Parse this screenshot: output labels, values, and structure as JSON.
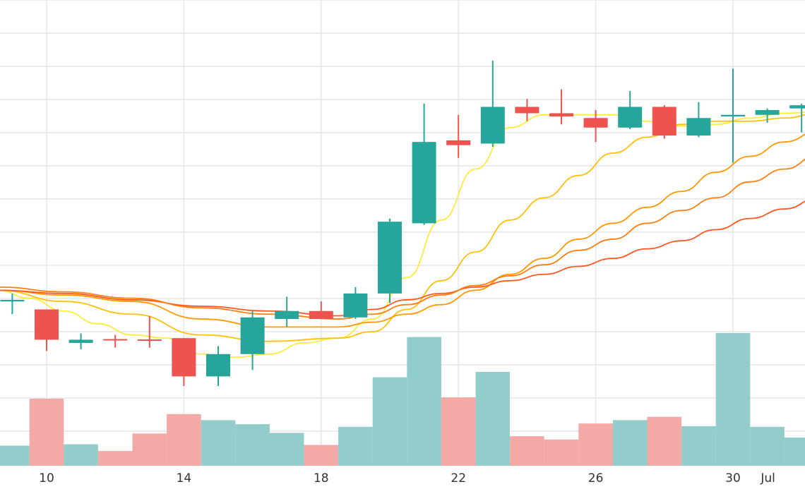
{
  "chart_data": {
    "type": "candlestick",
    "title": "",
    "xlabel": "",
    "ylabel": "",
    "grid": true,
    "legend": "none",
    "colors": {
      "up": "#26a69a",
      "down": "#ef5350",
      "volume_up": "#92cdcc",
      "volume_down": "#f4a9a7",
      "grid": "#e6e6e6",
      "ma": [
        "#ffeb3b",
        "#ffc107",
        "#ff9800",
        "#ff5722"
      ]
    },
    "x_ticks": [
      {
        "day": 10,
        "label": "10"
      },
      {
        "day": 14,
        "label": "14"
      },
      {
        "day": 18,
        "label": "18"
      },
      {
        "day": 22,
        "label": "22"
      },
      {
        "day": 26,
        "label": "26"
      },
      {
        "day": 30,
        "label": "30"
      },
      {
        "day": 31,
        "label": "Jul"
      }
    ],
    "price_range": [
      -0.3,
      14.3
    ],
    "volume_range": [
      0,
      200
    ],
    "candles": [
      {
        "day": 9,
        "open": 4.85,
        "high": 5.1,
        "low": 4.45,
        "close": 4.9
      },
      {
        "day": 10,
        "open": 4.6,
        "high": 4.6,
        "low": 3.3,
        "close": 3.65
      },
      {
        "day": 11,
        "open": 3.55,
        "high": 3.85,
        "low": 3.35,
        "close": 3.65
      },
      {
        "day": 12,
        "open": 3.67,
        "high": 3.8,
        "low": 3.4,
        "close": 3.64
      },
      {
        "day": 13,
        "open": 3.66,
        "high": 4.4,
        "low": 3.4,
        "close": 3.64
      },
      {
        "day": 14,
        "open": 3.7,
        "high": 3.7,
        "low": 2.2,
        "close": 2.5
      },
      {
        "day": 15,
        "open": 2.5,
        "high": 3.45,
        "low": 2.2,
        "close": 3.2
      },
      {
        "day": 16,
        "open": 3.2,
        "high": 4.55,
        "low": 2.7,
        "close": 4.35
      },
      {
        "day": 17,
        "open": 4.3,
        "high": 5.0,
        "low": 4.05,
        "close": 4.55
      },
      {
        "day": 18,
        "open": 4.55,
        "high": 4.85,
        "low": 4.3,
        "close": 4.3
      },
      {
        "day": 19,
        "open": 4.35,
        "high": 5.3,
        "low": 4.3,
        "close": 5.1
      },
      {
        "day": 20,
        "open": 5.1,
        "high": 7.45,
        "low": 4.8,
        "close": 7.35
      },
      {
        "day": 21,
        "open": 7.3,
        "high": 11.05,
        "low": 7.25,
        "close": 9.85
      },
      {
        "day": 22,
        "open": 9.9,
        "high": 10.7,
        "low": 9.35,
        "close": 9.75
      },
      {
        "day": 23,
        "open": 9.8,
        "high": 12.4,
        "low": 9.7,
        "close": 10.95
      },
      {
        "day": 24,
        "open": 10.95,
        "high": 11.2,
        "low": 10.5,
        "close": 10.75
      },
      {
        "day": 25,
        "open": 10.75,
        "high": 11.5,
        "low": 10.4,
        "close": 10.65
      },
      {
        "day": 26,
        "open": 10.6,
        "high": 10.85,
        "low": 9.85,
        "close": 10.3
      },
      {
        "day": 27,
        "open": 10.3,
        "high": 11.45,
        "low": 10.25,
        "close": 10.95
      },
      {
        "day": 28,
        "open": 10.95,
        "high": 11.0,
        "low": 9.95,
        "close": 10.05
      },
      {
        "day": 29,
        "open": 10.05,
        "high": 11.1,
        "low": 10.0,
        "close": 10.6
      },
      {
        "day": 30,
        "open": 10.65,
        "high": 12.15,
        "low": 9.2,
        "close": 10.7
      },
      {
        "day": 31,
        "open": 10.7,
        "high": 10.9,
        "low": 10.45,
        "close": 10.85
      },
      {
        "day": 32,
        "open": 10.9,
        "high": 11.05,
        "low": 10.15,
        "close": 11.0
      }
    ],
    "volume": [
      {
        "day": 9,
        "value": 30
      },
      {
        "day": 10,
        "value": 100
      },
      {
        "day": 11,
        "value": 32
      },
      {
        "day": 12,
        "value": 22
      },
      {
        "day": 13,
        "value": 48
      },
      {
        "day": 14,
        "value": 77
      },
      {
        "day": 15,
        "value": 68
      },
      {
        "day": 16,
        "value": 62
      },
      {
        "day": 17,
        "value": 49
      },
      {
        "day": 18,
        "value": 31
      },
      {
        "day": 19,
        "value": 58
      },
      {
        "day": 20,
        "value": 132
      },
      {
        "day": 21,
        "value": 192
      },
      {
        "day": 22,
        "value": 102
      },
      {
        "day": 23,
        "value": 140
      },
      {
        "day": 24,
        "value": 44
      },
      {
        "day": 25,
        "value": 39
      },
      {
        "day": 26,
        "value": 63
      },
      {
        "day": 27,
        "value": 68
      },
      {
        "day": 28,
        "value": 73
      },
      {
        "day": 29,
        "value": 59
      },
      {
        "day": 30,
        "value": 198
      },
      {
        "day": 31,
        "value": 58
      },
      {
        "day": 32,
        "value": 42
      }
    ],
    "moving_averages": [
      {
        "color": "#ffeb3b",
        "points": [
          [
            8.6,
            5.2
          ],
          [
            9.5,
            4.95
          ],
          [
            10.5,
            4.55
          ],
          [
            11.5,
            4.15
          ],
          [
            12.5,
            3.8
          ],
          [
            13.5,
            3.7
          ],
          [
            14.5,
            3.2
          ],
          [
            15.5,
            3.1
          ],
          [
            16.5,
            3.2
          ],
          [
            17.5,
            3.55
          ],
          [
            18.5,
            3.7
          ],
          [
            19.5,
            4.3
          ],
          [
            20.5,
            5.6
          ],
          [
            21.5,
            7.4
          ],
          [
            22.5,
            9.0
          ],
          [
            23.5,
            10.3
          ],
          [
            24.5,
            10.7
          ],
          [
            25.5,
            10.7
          ],
          [
            26.5,
            10.7
          ],
          [
            27.5,
            10.5
          ],
          [
            28.5,
            10.35
          ],
          [
            29.5,
            10.4
          ],
          [
            30.5,
            10.6
          ],
          [
            31.5,
            10.75
          ],
          [
            32.5,
            10.8
          ]
        ]
      },
      {
        "color": "#ffc107",
        "points": [
          [
            8.6,
            5.2
          ],
          [
            10.5,
            4.85
          ],
          [
            12.5,
            4.45
          ],
          [
            14.5,
            3.8
          ],
          [
            16.5,
            3.6
          ],
          [
            18.5,
            3.7
          ],
          [
            19.5,
            3.9
          ],
          [
            20.5,
            4.6
          ],
          [
            21.5,
            5.5
          ],
          [
            22.5,
            6.4
          ],
          [
            23.5,
            7.4
          ],
          [
            24.5,
            8.1
          ],
          [
            25.5,
            8.8
          ],
          [
            26.5,
            9.5
          ],
          [
            27.5,
            10.0
          ],
          [
            28.5,
            10.4
          ],
          [
            29.5,
            10.5
          ],
          [
            30.5,
            10.5
          ],
          [
            31.5,
            10.6
          ],
          [
            32.5,
            10.75
          ]
        ]
      },
      {
        "color": "#ff9800",
        "points": [
          [
            8.6,
            5.2
          ],
          [
            10.5,
            5.05
          ],
          [
            12.5,
            4.85
          ],
          [
            14.5,
            4.3
          ],
          [
            16.5,
            4.05
          ],
          [
            18.5,
            4.05
          ],
          [
            19.5,
            4.2
          ],
          [
            20.5,
            4.45
          ],
          [
            21.5,
            4.75
          ],
          [
            22.5,
            5.2
          ],
          [
            23.5,
            5.7
          ],
          [
            24.5,
            6.2
          ],
          [
            25.5,
            6.8
          ],
          [
            26.5,
            7.3
          ],
          [
            27.5,
            7.8
          ],
          [
            28.5,
            8.3
          ],
          [
            29.5,
            8.9
          ],
          [
            30.5,
            9.4
          ],
          [
            31.5,
            9.85
          ],
          [
            32.5,
            10.2
          ]
        ]
      },
      {
        "color": "#ff5722",
        "points": [
          [
            8.6,
            5.2
          ],
          [
            10.5,
            5.1
          ],
          [
            12.5,
            4.9
          ],
          [
            14.5,
            4.7
          ],
          [
            16.5,
            4.55
          ],
          [
            18.5,
            4.4
          ],
          [
            19.5,
            4.6
          ],
          [
            20.5,
            4.9
          ],
          [
            21.5,
            5.1
          ],
          [
            22.5,
            5.3
          ],
          [
            23.5,
            5.5
          ],
          [
            24.5,
            5.7
          ],
          [
            25.5,
            5.95
          ],
          [
            26.5,
            6.2
          ],
          [
            27.5,
            6.5
          ],
          [
            28.5,
            6.75
          ],
          [
            29.5,
            7.1
          ],
          [
            30.5,
            7.45
          ],
          [
            31.5,
            7.75
          ],
          [
            32.5,
            8.1
          ]
        ]
      },
      {
        "color": "#ff7f0e",
        "points": [
          [
            8.6,
            5.3
          ],
          [
            10.5,
            5.15
          ],
          [
            12.5,
            4.95
          ],
          [
            14.5,
            4.65
          ],
          [
            16.5,
            4.45
          ],
          [
            18.5,
            4.3
          ],
          [
            19.5,
            4.45
          ],
          [
            20.5,
            4.75
          ],
          [
            21.5,
            5.05
          ],
          [
            22.5,
            5.35
          ],
          [
            23.5,
            5.65
          ],
          [
            24.5,
            6.0
          ],
          [
            25.5,
            6.45
          ],
          [
            26.5,
            6.8
          ],
          [
            27.5,
            7.3
          ],
          [
            28.5,
            7.7
          ],
          [
            29.5,
            8.1
          ],
          [
            30.5,
            8.6
          ],
          [
            31.5,
            9.0
          ],
          [
            32.5,
            9.45
          ]
        ]
      }
    ]
  }
}
